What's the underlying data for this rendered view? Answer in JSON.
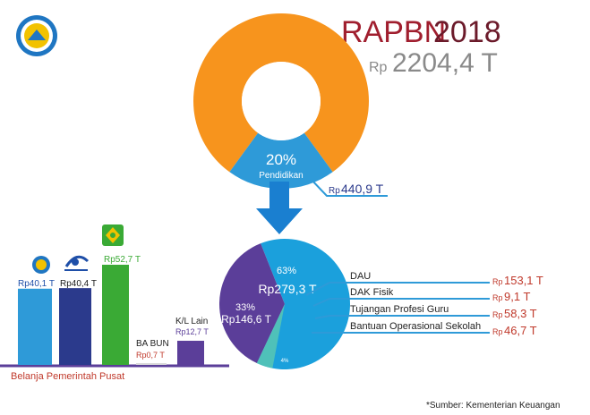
{
  "header": {
    "title_prefix": "RAPBN",
    "title_year": "2018",
    "total_prefix": "Rp",
    "total_value": "2204,4 T"
  },
  "donut": {
    "percent_label": "20%",
    "sector_label": "Pendidikan",
    "amount_prefix": "Rp",
    "amount_value": "440,9 T"
  },
  "pie": {
    "big_pct": "63%",
    "big_amount": "Rp279,3 T",
    "small_pct": "33%",
    "small_amount": "Rp146,6 T",
    "tiny_pct": "4%"
  },
  "transfer_items": [
    {
      "label": "DAU",
      "prefix": "Rp",
      "value": "153,1 T"
    },
    {
      "label": "DAK Fisik",
      "prefix": "Rp",
      "value": "9,1 T"
    },
    {
      "label": "Tujangan Profesi Guru",
      "prefix": "Rp",
      "value": "58,3 T"
    },
    {
      "label": "Bantuan Operasional Sekolah",
      "prefix": "Rp",
      "value": "46,7 T"
    }
  ],
  "bars_group_label": "Belanja Pemerintah Pusat",
  "source_note": "*Sumber: Kementerian Keuangan",
  "colors": {
    "orange": "#f7941d",
    "blue": "#2e9ad8",
    "navy": "#2b3a8c",
    "green": "#3aaa35",
    "purple": "#5b3e99",
    "maroon": "#a01e2e",
    "red": "#c0392b",
    "gray": "#9a9a9a"
  },
  "icons": [
    "kemdikbud-logo",
    "ristekdikti-logo",
    "kemenag-logo"
  ],
  "chart_data": [
    {
      "type": "pie",
      "title": "RAPBN2018",
      "total": "Rp2204,4 T",
      "slices": [
        {
          "label": "Pendidikan",
          "percent": 20,
          "value": "Rp440,9 T"
        },
        {
          "label": "",
          "percent": 80
        }
      ]
    },
    {
      "type": "pie",
      "slices": [
        {
          "percent": 63,
          "value": 279.3
        },
        {
          "percent": 33,
          "value": 146.6
        },
        {
          "percent": 4
        }
      ]
    },
    {
      "type": "bar",
      "categories": [
        "",
        "",
        "",
        "BA BUN",
        "K/L Lain"
      ],
      "values": [
        40.1,
        40.4,
        52.7,
        0.7,
        12.7
      ],
      "labels": [
        "Rp40,1 T",
        "Rp40,4 T",
        "Rp52,7 T",
        "Rp0,7 T",
        "Rp12,7 T"
      ],
      "colors": [
        "#2e9ad8",
        "#2b3a8c",
        "#3aaa35",
        "#d9d9d9",
        "#5b3e99"
      ],
      "xlabel": "Belanja Pemerintah Pusat"
    }
  ]
}
